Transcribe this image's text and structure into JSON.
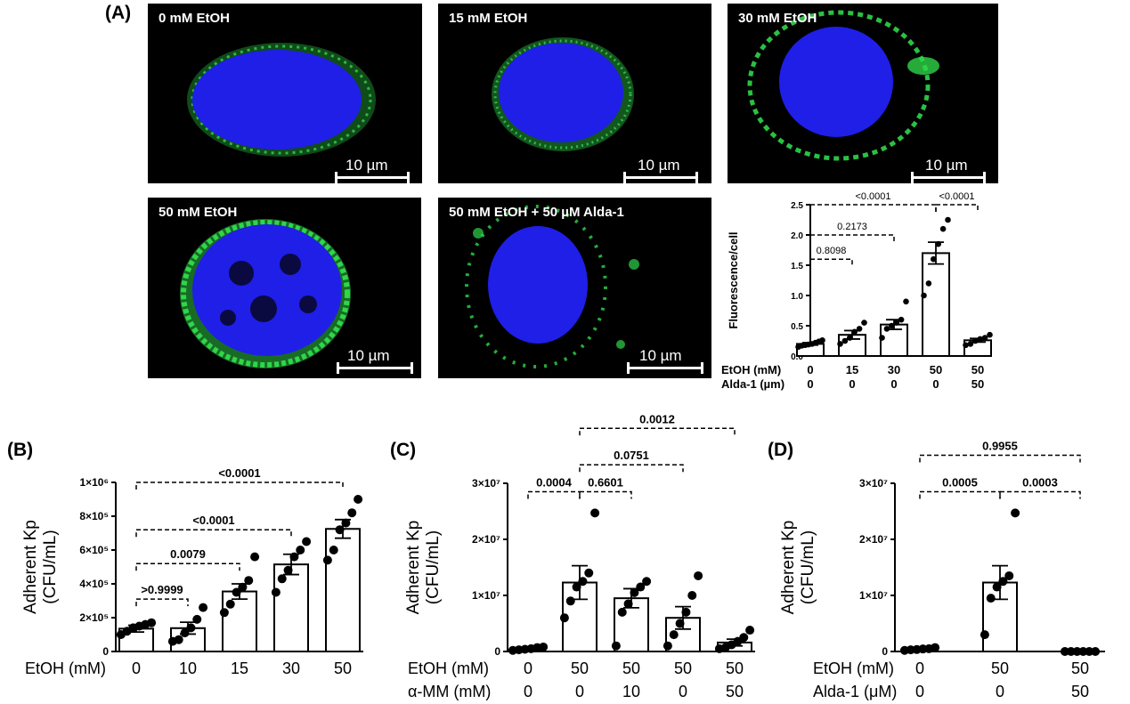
{
  "panels": {
    "A": "(A)",
    "B": "(B)",
    "C": "(C)",
    "D": "(D)"
  },
  "micrographs": [
    {
      "label": "0 mM EtOH",
      "scale": "10 µm"
    },
    {
      "label": "15 mM EtOH",
      "scale": "10 µm"
    },
    {
      "label": "30 mM EtOH",
      "scale": "10 µm"
    },
    {
      "label": "50 mM EtOH",
      "scale": "10 µm"
    },
    {
      "label": "50 mM EtOH + 50 µM Alda-1",
      "scale": "10 µm"
    }
  ],
  "colors": {
    "nucleus": "#1f1fe8",
    "stain": "#2fd64a",
    "background": "#000000"
  },
  "chart_data": [
    {
      "id": "A-inset",
      "type": "bar",
      "ylabel": "Fluorescence/cell",
      "ylim": [
        0,
        2.5
      ],
      "yticks": [
        "0.0",
        "0.5",
        "1.0",
        "1.5",
        "2.0",
        "2.5"
      ],
      "row_labels": [
        "EtOH  (mM)",
        "Alda-1  (µm)"
      ],
      "groups": [
        {
          "row1": "0",
          "row2": "0",
          "mean": 0.2,
          "sem": 0.02,
          "points": [
            0.15,
            0.17,
            0.18,
            0.19,
            0.2,
            0.22,
            0.24,
            0.26
          ]
        },
        {
          "row1": "15",
          "row2": "0",
          "mean": 0.35,
          "sem": 0.07,
          "points": [
            0.2,
            0.25,
            0.3,
            0.4,
            0.45,
            0.55
          ]
        },
        {
          "row1": "30",
          "row2": "0",
          "mean": 0.52,
          "sem": 0.08,
          "points": [
            0.3,
            0.45,
            0.5,
            0.55,
            0.6,
            0.9
          ]
        },
        {
          "row1": "50",
          "row2": "0",
          "mean": 1.7,
          "sem": 0.18,
          "points": [
            1.0,
            1.2,
            1.6,
            1.85,
            2.1,
            2.25
          ]
        },
        {
          "row1": "50",
          "row2": "50",
          "mean": 0.26,
          "sem": 0.03,
          "points": [
            0.18,
            0.2,
            0.25,
            0.28,
            0.3,
            0.35
          ]
        }
      ],
      "comparisons": [
        {
          "from": 0,
          "to": 1,
          "label": "0.8098",
          "y": 1.6
        },
        {
          "from": 0,
          "to": 2,
          "label": "0.2173",
          "y": 2.0
        },
        {
          "from": 0,
          "to": 3,
          "label": "<0.0001",
          "y": 2.5
        },
        {
          "from": 3,
          "to": 4,
          "label": "<0.0001",
          "y": 2.5
        }
      ]
    },
    {
      "id": "B",
      "type": "bar",
      "ylabel": "Adherent Kp",
      "ylabel2": "(CFU/mL)",
      "ylim": [
        0,
        1000000
      ],
      "yticks": [
        "0",
        "2×10⁵",
        "4×10⁵",
        "6×10⁵",
        "8×10⁵",
        "1×10⁶"
      ],
      "row_labels": [
        "EtOH (mM)"
      ],
      "groups": [
        {
          "row1": "0",
          "mean": 135000,
          "sem": 20000,
          "points": [
            100000,
            120000,
            140000,
            150000,
            160000,
            170000
          ]
        },
        {
          "row1": "10",
          "mean": 138000,
          "sem": 35000,
          "points": [
            60000,
            70000,
            110000,
            140000,
            190000,
            260000
          ]
        },
        {
          "row1": "15",
          "mean": 355000,
          "sem": 45000,
          "points": [
            230000,
            280000,
            350000,
            380000,
            420000,
            560000
          ]
        },
        {
          "row1": "30",
          "mean": 515000,
          "sem": 60000,
          "points": [
            350000,
            430000,
            480000,
            560000,
            600000,
            650000
          ]
        },
        {
          "row1": "50",
          "mean": 725000,
          "sem": 55000,
          "points": [
            540000,
            600000,
            720000,
            760000,
            820000,
            900000
          ]
        }
      ],
      "comparisons": [
        {
          "from": 0,
          "to": 1,
          "label": ">0.9999",
          "y": 310000
        },
        {
          "from": 0,
          "to": 2,
          "label": "0.0079",
          "y": 520000
        },
        {
          "from": 0,
          "to": 3,
          "label": "<0.0001",
          "y": 720000
        },
        {
          "from": 0,
          "to": 4,
          "label": "<0.0001",
          "y": 1000000
        }
      ]
    },
    {
      "id": "C",
      "type": "bar",
      "ylabel": "Adherent Kp",
      "ylabel2": "(CFU/mL)",
      "ylim": [
        0,
        30000000
      ],
      "yticks": [
        "0",
        "1×10⁷",
        "2×10⁷",
        "3×10⁷"
      ],
      "row_labels": [
        "EtOH (mM)",
        "α-MM (mM)"
      ],
      "groups": [
        {
          "row1": "0",
          "row2": "0",
          "mean": 500000,
          "sem": 150000,
          "points": [
            200000,
            300000,
            400000,
            500000,
            700000,
            800000
          ]
        },
        {
          "row1": "50",
          "row2": "0",
          "mean": 12300000,
          "sem": 3000000,
          "points": [
            6000000,
            9000000,
            11500000,
            12500000,
            14000000,
            24700000
          ]
        },
        {
          "row1": "50",
          "row2": "10",
          "mean": 9500000,
          "sem": 1700000,
          "points": [
            1000000,
            7000000,
            8500000,
            10500000,
            11500000,
            12500000
          ]
        },
        {
          "row1": "50",
          "row2": "0",
          "mean": 6000000,
          "sem": 2000000,
          "points": [
            1000000,
            3000000,
            5000000,
            7000000,
            10000000,
            13500000
          ]
        },
        {
          "row1": "50",
          "row2": "50",
          "mean": 1600000,
          "sem": 600000,
          "points": [
            500000,
            700000,
            1200000,
            1800000,
            2500000,
            3800000
          ]
        }
      ],
      "comparisons": [
        {
          "from": 0,
          "to": 1,
          "label": "0.0004",
          "y": 28500000
        },
        {
          "from": 1,
          "to": 2,
          "label": "0.6601",
          "y": 28500000
        },
        {
          "from": 1,
          "to": 3,
          "label": "0.0751",
          "y": 33300000
        },
        {
          "from": 1,
          "to": 4,
          "label": "0.0012",
          "y": 39800000
        }
      ]
    },
    {
      "id": "D",
      "type": "bar",
      "ylabel": "Adherent Kp",
      "ylabel2": "(CFU/mL)",
      "ylim": [
        0,
        30000000
      ],
      "yticks": [
        "0",
        "1×10⁷",
        "2×10⁷",
        "3×10⁷"
      ],
      "row_labels": [
        "EtOH (mM)",
        "Alda-1 (μM)"
      ],
      "groups": [
        {
          "row1": "0",
          "row2": "0",
          "mean": 400000,
          "sem": 100000,
          "points": [
            200000,
            300000,
            350000,
            450000,
            500000,
            700000
          ]
        },
        {
          "row1": "50",
          "row2": "0",
          "mean": 12300000,
          "sem": 3000000,
          "points": [
            3000000,
            9500000,
            11500000,
            12500000,
            13500000,
            24700000
          ]
        },
        {
          "row1": "50",
          "row2": "50",
          "mean": 0,
          "sem": 0,
          "points": [
            0,
            0,
            0,
            0,
            0,
            0
          ]
        }
      ],
      "comparisons": [
        {
          "from": 0,
          "to": 1,
          "label": "0.0005",
          "y": 28500000
        },
        {
          "from": 1,
          "to": 2,
          "label": "0.0003",
          "y": 28500000
        },
        {
          "from": 0,
          "to": 2,
          "label": "0.9955",
          "y": 35000000
        }
      ]
    }
  ]
}
